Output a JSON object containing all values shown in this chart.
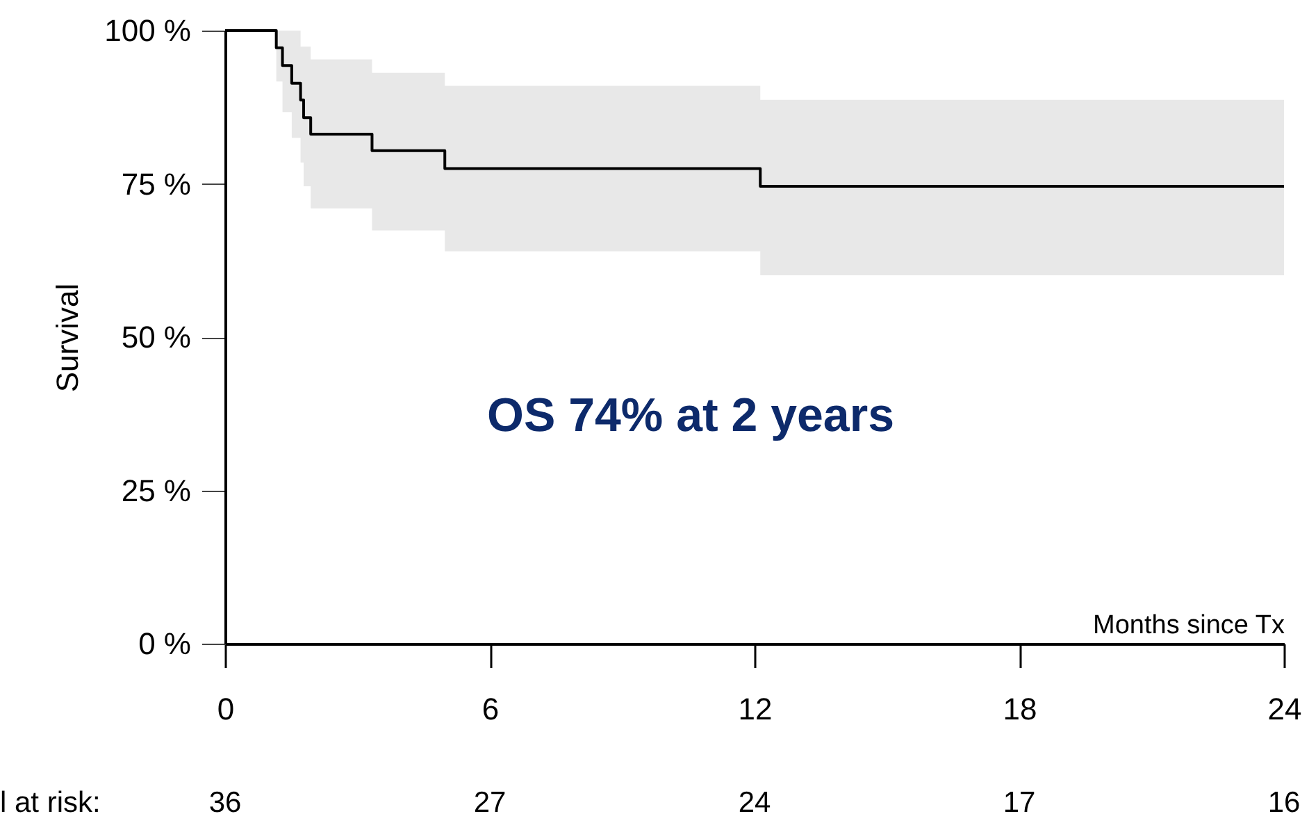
{
  "chart_data": {
    "type": "step",
    "xlabel": "Months since Tx",
    "ylabel": "Survival",
    "xlim": [
      0,
      24
    ],
    "xticks": [
      0,
      6,
      12,
      18,
      24
    ],
    "ylim": [
      0,
      100
    ],
    "yticks": [
      {
        "value": 0,
        "label": "0 %"
      },
      {
        "value": 25,
        "label": "25 %"
      },
      {
        "value": 50,
        "label": "50 %"
      },
      {
        "value": 75,
        "label": "75 %"
      },
      {
        "value": 100,
        "label": "100 %"
      }
    ],
    "x": [
      0,
      1.16,
      1.3,
      1.51,
      1.71,
      1.78,
      1.94,
      3.33,
      4.98,
      12.13,
      24
    ],
    "series": [
      {
        "color": "#000000",
        "values": [
          100,
          97.2,
          94.3,
          91.4,
          88.7,
          85.8,
          83.1,
          80.4,
          77.5,
          74.6,
          74.6
        ],
        "lower": [
          null,
          91.7,
          86.7,
          82.5,
          78.5,
          74.6,
          71,
          67.4,
          64,
          60.1,
          60.1
        ],
        "upper": [
          null,
          100,
          100,
          100,
          97.4,
          97.4,
          95.3,
          93.1,
          91,
          88.7,
          88.7
        ]
      }
    ],
    "annotations": [
      "OS 74% at 2 years",
      "l at risk:",
      "36",
      "27",
      "24",
      "17",
      "16"
    ],
    "grid": false,
    "line_style": "solid",
    "marker": "none"
  }
}
